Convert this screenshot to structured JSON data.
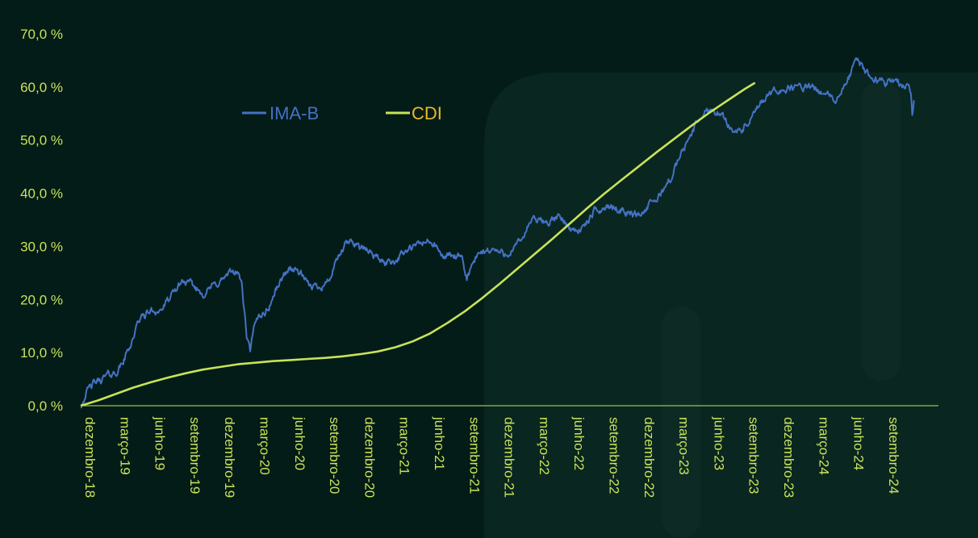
{
  "chart_data": {
    "type": "line",
    "title": "",
    "xlabel": "",
    "ylabel": "",
    "ylim": [
      0,
      70
    ],
    "y_ticks": [
      "0,0 %",
      "10,0 %",
      "20,0 %",
      "30,0 %",
      "40,0 %",
      "50,0 %",
      "60,0 %",
      "70,0 %"
    ],
    "x_ticks": [
      "dezembro-18",
      "março-19",
      "junho-19",
      "setembro-19",
      "dezembro-19",
      "março-20",
      "junho-20",
      "setembro-20",
      "dezembro-20",
      "março-21",
      "junho-21",
      "setembro-21",
      "dezembro-21",
      "março-22",
      "junho-22",
      "setembro-22",
      "dezembro-22",
      "março-23",
      "junho-23",
      "setembro-23",
      "dezembro-23",
      "março-24",
      "junho-24",
      "setembro-24"
    ],
    "x_axis_end": 24.55,
    "grid": false,
    "legend_position": "top-left",
    "series": [
      {
        "name": "IMA-B",
        "color": "#4472c4",
        "points": [
          [
            0,
            0
          ],
          [
            0.15,
            2.5
          ],
          [
            0.35,
            4
          ],
          [
            0.6,
            5
          ],
          [
            0.8,
            5.8
          ],
          [
            1.0,
            6.2
          ],
          [
            1.2,
            8
          ],
          [
            1.45,
            12
          ],
          [
            1.7,
            16.5
          ],
          [
            2.0,
            17.8
          ],
          [
            2.3,
            18
          ],
          [
            2.6,
            20.5
          ],
          [
            2.9,
            23.5
          ],
          [
            3.2,
            22.5
          ],
          [
            3.5,
            21.2
          ],
          [
            3.8,
            22.5
          ],
          [
            4.1,
            24
          ],
          [
            4.45,
            25.5
          ],
          [
            4.6,
            23.5
          ],
          [
            4.75,
            13
          ],
          [
            4.85,
            10
          ],
          [
            4.95,
            14
          ],
          [
            5.1,
            17
          ],
          [
            5.35,
            18
          ],
          [
            5.6,
            22
          ],
          [
            5.85,
            25
          ],
          [
            6.0,
            26
          ],
          [
            6.3,
            25
          ],
          [
            6.5,
            22.5
          ],
          [
            6.8,
            22.5
          ],
          [
            7.1,
            23.5
          ],
          [
            7.35,
            27.5
          ],
          [
            7.6,
            30.5
          ],
          [
            7.85,
            30.8
          ],
          [
            8.1,
            29.5
          ],
          [
            8.4,
            28.5
          ],
          [
            8.65,
            27
          ],
          [
            9.0,
            27.5
          ],
          [
            9.3,
            29
          ],
          [
            9.6,
            30
          ],
          [
            9.9,
            31
          ],
          [
            10.1,
            30.5
          ],
          [
            10.35,
            28
          ],
          [
            10.6,
            28.5
          ],
          [
            10.9,
            27.5
          ],
          [
            11.05,
            24
          ],
          [
            11.25,
            27
          ],
          [
            11.5,
            29
          ],
          [
            11.8,
            29.5
          ],
          [
            12.1,
            28.5
          ],
          [
            12.4,
            29.5
          ],
          [
            12.6,
            31
          ],
          [
            12.9,
            35
          ],
          [
            13.3,
            34.5
          ],
          [
            13.7,
            35.5
          ],
          [
            14.1,
            33
          ],
          [
            14.4,
            33.5
          ],
          [
            14.7,
            36.5
          ],
          [
            15.1,
            37.5
          ],
          [
            15.5,
            37
          ],
          [
            15.8,
            36
          ],
          [
            16.1,
            36.5
          ],
          [
            16.5,
            39
          ],
          [
            16.9,
            43
          ],
          [
            17.3,
            49
          ],
          [
            17.7,
            54
          ],
          [
            18.0,
            56
          ],
          [
            18.3,
            55
          ],
          [
            18.6,
            52.5
          ],
          [
            18.9,
            51.5
          ],
          [
            19.2,
            54
          ],
          [
            19.6,
            58
          ],
          [
            20.0,
            59.5
          ],
          [
            20.4,
            60
          ],
          [
            20.8,
            60
          ],
          [
            21.2,
            59
          ],
          [
            21.6,
            57.5
          ],
          [
            21.8,
            59
          ],
          [
            22.0,
            62
          ],
          [
            22.2,
            65
          ],
          [
            22.45,
            63
          ],
          [
            22.75,
            61.5
          ],
          [
            23.05,
            61
          ],
          [
            23.35,
            61.5
          ],
          [
            23.55,
            60
          ],
          [
            23.7,
            60.5
          ],
          [
            23.76,
            59.5
          ],
          [
            23.8,
            54.7
          ],
          [
            23.85,
            57.5
          ]
        ]
      },
      {
        "name": "CDI",
        "color": "#c8e35a",
        "points": [
          [
            0,
            0
          ],
          [
            0.5,
            1
          ],
          [
            1.0,
            2.2
          ],
          [
            1.5,
            3.4
          ],
          [
            2.0,
            4.4
          ],
          [
            2.5,
            5.3
          ],
          [
            3.0,
            6.1
          ],
          [
            3.5,
            6.8
          ],
          [
            4.0,
            7.3
          ],
          [
            4.5,
            7.8
          ],
          [
            5.0,
            8.1
          ],
          [
            5.5,
            8.4
          ],
          [
            6.0,
            8.6
          ],
          [
            6.5,
            8.8
          ],
          [
            7.0,
            9.0
          ],
          [
            7.5,
            9.3
          ],
          [
            8.0,
            9.7
          ],
          [
            8.5,
            10.2
          ],
          [
            9.0,
            11.0
          ],
          [
            9.5,
            12.1
          ],
          [
            10.0,
            13.6
          ],
          [
            10.5,
            15.6
          ],
          [
            11.0,
            17.8
          ],
          [
            11.5,
            20.3
          ],
          [
            12.0,
            23.0
          ],
          [
            12.5,
            25.8
          ],
          [
            13.0,
            28.6
          ],
          [
            13.5,
            31.4
          ],
          [
            14.0,
            34.3
          ],
          [
            14.5,
            37.2
          ],
          [
            15.0,
            40.0
          ],
          [
            15.5,
            42.6
          ],
          [
            16.0,
            45.2
          ],
          [
            16.5,
            47.8
          ],
          [
            17.0,
            50.3
          ],
          [
            17.5,
            52.8
          ],
          [
            18.0,
            55.2
          ],
          [
            18.5,
            57.4
          ],
          [
            19.0,
            59.6
          ],
          [
            19.3,
            60.8
          ]
        ]
      }
    ]
  }
}
